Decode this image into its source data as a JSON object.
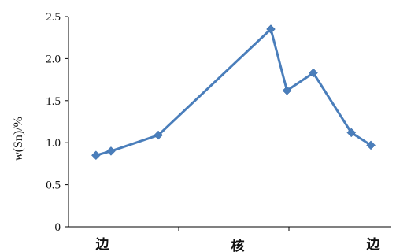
{
  "chart_data": {
    "type": "line",
    "title": "",
    "ylabel": {
      "italic": "w",
      "rest": "(Sn)/%"
    },
    "xlabel": "",
    "ylim": [
      0,
      2.5
    ],
    "yticks": [
      0,
      0.5,
      1.0,
      1.5,
      2.0,
      2.5
    ],
    "ytick_labels": [
      "0",
      "0.5",
      "1.0",
      "1.5",
      "2.0",
      "2.5"
    ],
    "x_labels": [
      {
        "label": "边",
        "x": 0
      },
      {
        "label": "核",
        "x": 5
      },
      {
        "label": "边",
        "x": 10
      }
    ],
    "xlim": [
      0,
      10
    ],
    "series": [
      {
        "color": "#4a7ebb",
        "marker": "diamond",
        "x": [
          0.33,
          0.86,
          2.53,
          6.5,
          7.07,
          8.0,
          9.34,
          10.03
        ],
        "y": [
          0.85,
          0.9,
          1.09,
          2.35,
          1.62,
          1.83,
          1.12,
          0.97
        ]
      }
    ]
  }
}
